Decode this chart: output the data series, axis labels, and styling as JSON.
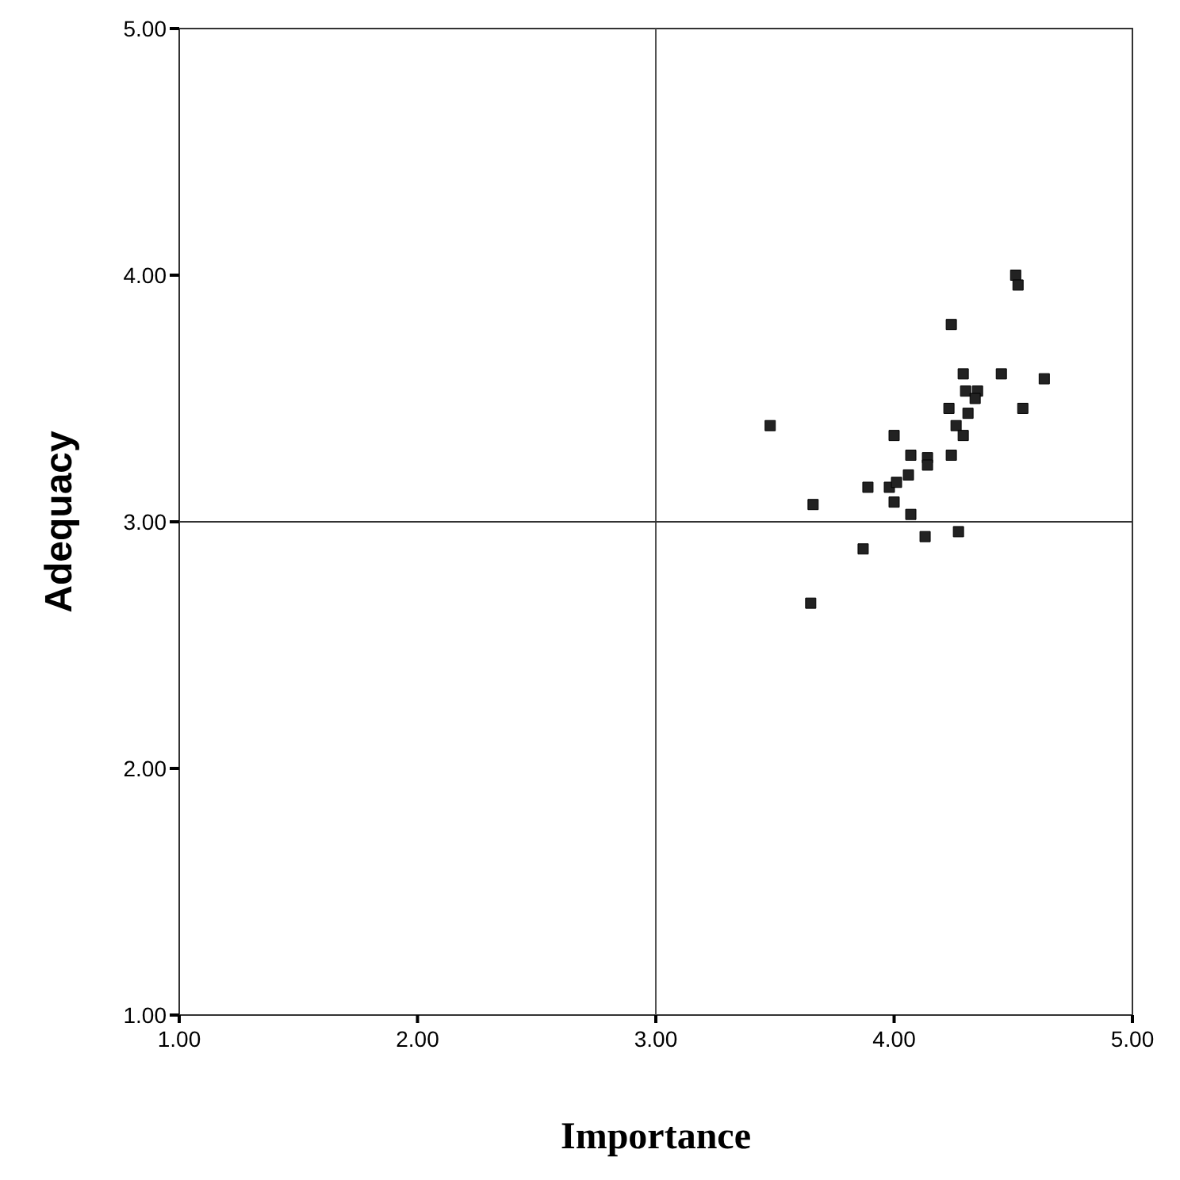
{
  "chart_data": {
    "type": "scatter",
    "xlabel": "Importance",
    "ylabel": "Adequacy",
    "marker": "square",
    "xlim": [
      1,
      5
    ],
    "ylim": [
      1,
      5
    ],
    "xticks": [
      {
        "value": 1,
        "label": "1.00"
      },
      {
        "value": 2,
        "label": "2.00"
      },
      {
        "value": 3,
        "label": "3.00"
      },
      {
        "value": 4,
        "label": "4.00"
      },
      {
        "value": 5,
        "label": "5.00"
      }
    ],
    "yticks": [
      {
        "value": 1,
        "label": "1.00"
      },
      {
        "value": 2,
        "label": "2.00"
      },
      {
        "value": 3,
        "label": "3.00"
      },
      {
        "value": 4,
        "label": "4.00"
      },
      {
        "value": 5,
        "label": "5.00"
      }
    ],
    "ref_lines": [
      {
        "axis": "x",
        "value": 3,
        "color": "#555555"
      },
      {
        "axis": "y",
        "value": 3,
        "color": "#333333"
      }
    ],
    "series": [
      {
        "color": "#222222",
        "x": [
          4.24,
          4.51,
          4.52,
          4.29,
          4.45,
          4.63,
          4.3,
          4.35,
          4.34,
          4.23,
          4.31,
          4.54,
          3.48,
          4.0,
          4.26,
          4.29,
          4.07,
          4.14,
          4.14,
          4.24,
          4.06,
          3.89,
          3.98,
          4.01,
          3.66,
          4.0,
          4.07,
          4.13,
          4.27,
          3.87,
          3.65
        ],
        "values": [
          3.8,
          4.0,
          3.96,
          3.6,
          3.6,
          3.58,
          3.53,
          3.53,
          3.5,
          3.46,
          3.44,
          3.46,
          3.39,
          3.35,
          3.39,
          3.35,
          3.27,
          3.26,
          3.23,
          3.27,
          3.19,
          3.14,
          3.14,
          3.16,
          3.07,
          3.08,
          3.03,
          2.94,
          2.96,
          2.89,
          2.67
        ]
      }
    ]
  }
}
